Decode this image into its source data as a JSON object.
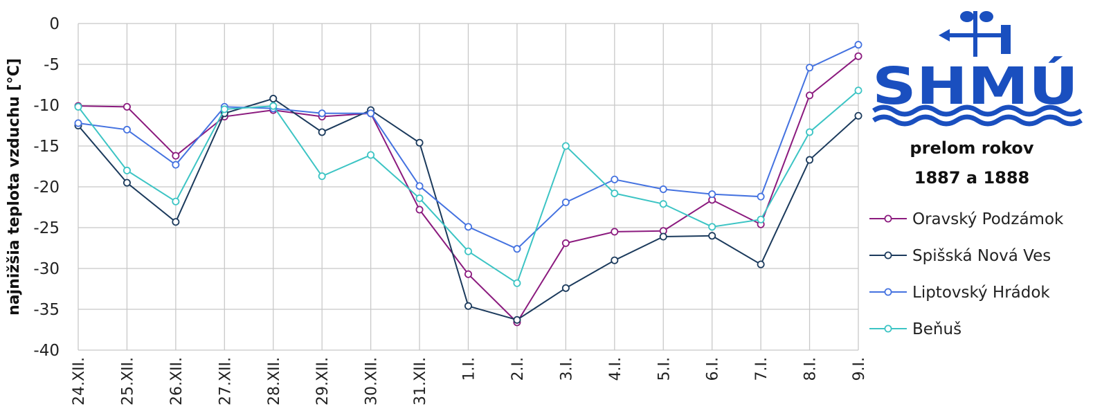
{
  "chart_data": {
    "type": "line",
    "subtitle_lines": [
      "prelom rokov",
      "1887 a 1888"
    ],
    "xlabel": "",
    "ylabel": "najnižšia teplota vzduchu [°C]",
    "ylim": [
      -40,
      0
    ],
    "yticks": [
      0,
      -5,
      -10,
      -15,
      -20,
      -25,
      -30,
      -35,
      -40
    ],
    "grid": true,
    "legend_position": "right",
    "categories": [
      "24.XII.",
      "25.XII.",
      "26.XII.",
      "27.XII.",
      "28.XII.",
      "29.XII.",
      "30.XII.",
      "31.XII.",
      "1.I.",
      "2.I.",
      "3.I.",
      "4.I.",
      "5.I.",
      "6.I.",
      "7.I.",
      "8.I.",
      "9.I."
    ],
    "series": [
      {
        "name": "Oravský Podzámok",
        "color": "#8b1a7e",
        "values": [
          -10.1,
          -10.2,
          -16.2,
          -11.4,
          -10.6,
          -11.4,
          -11.0,
          -22.8,
          -30.7,
          -36.6,
          -26.9,
          -25.5,
          -25.4,
          -21.6,
          -24.6,
          -8.8,
          -4.0
        ]
      },
      {
        "name": "Spišská Nová Ves",
        "color": "#1b3a5c",
        "values": [
          -12.5,
          -19.5,
          -24.3,
          -11.0,
          -9.2,
          -13.3,
          -10.6,
          -14.6,
          -34.6,
          -36.3,
          -32.4,
          -29.0,
          -26.1,
          -26.0,
          -29.5,
          -16.7,
          -11.3
        ]
      },
      {
        "name": "Liptovský Hrádok",
        "color": "#4472e0",
        "values": [
          -12.2,
          -13.0,
          -17.3,
          -10.2,
          -10.4,
          -11.0,
          -11.0,
          -19.9,
          -24.9,
          -27.6,
          -21.9,
          -19.1,
          -20.3,
          -20.9,
          -21.2,
          -5.4,
          -2.6
        ]
      },
      {
        "name": "Beňuš",
        "color": "#3cc4c4",
        "values": [
          -10.2,
          -18.0,
          -21.8,
          -10.5,
          -10.1,
          -18.7,
          -16.1,
          -21.4,
          -27.9,
          -31.8,
          -15.0,
          -20.8,
          -22.1,
          -24.9,
          -24.0,
          -13.3,
          -8.2
        ]
      }
    ]
  },
  "logo": {
    "text": "SHMÚ",
    "color": "#1a4fbf"
  }
}
